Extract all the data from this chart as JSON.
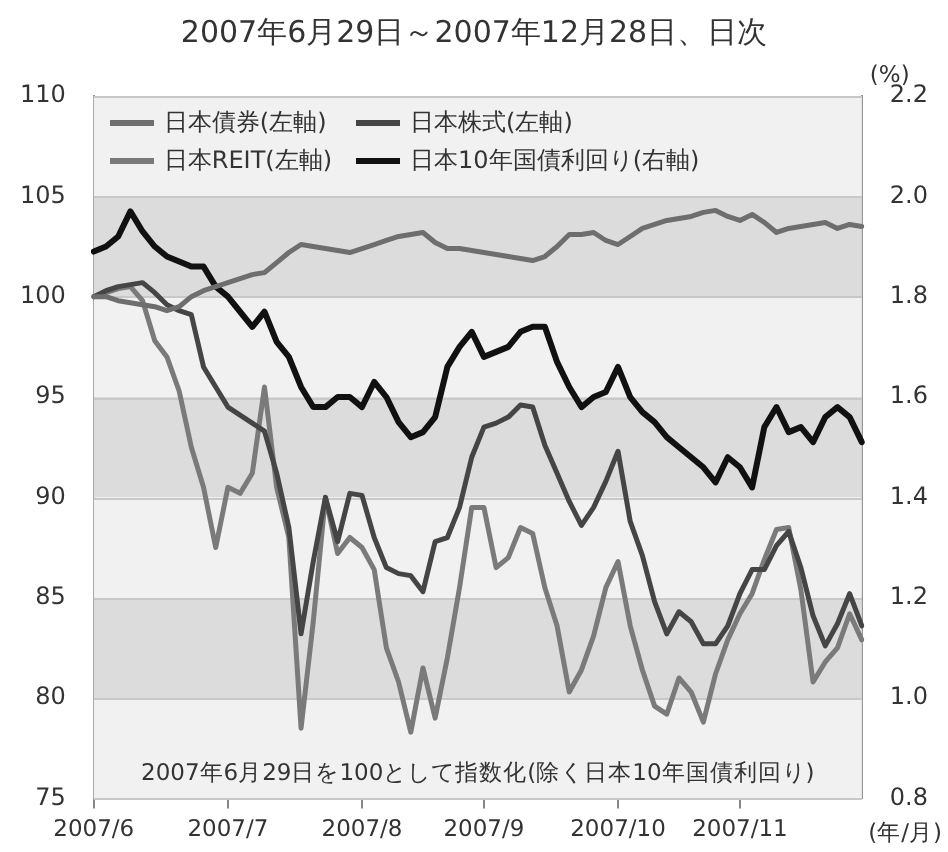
{
  "chart_data": {
    "type": "line",
    "title": "2007年6月29日～2007年12月28日、日次",
    "xlabel": "(年/月)",
    "y2label": "(%)",
    "categories": [
      "2007/6",
      null,
      null,
      null,
      null,
      null,
      null,
      null,
      null,
      null,
      null,
      "2007/7",
      null,
      null,
      null,
      null,
      null,
      null,
      null,
      null,
      null,
      null,
      "2007/8",
      null,
      null,
      null,
      null,
      null,
      null,
      null,
      null,
      null,
      "2007/9",
      null,
      null,
      null,
      null,
      null,
      null,
      null,
      null,
      null,
      null,
      "2007/10",
      null,
      null,
      null,
      null,
      null,
      null,
      null,
      null,
      null,
      "2007/11",
      null,
      null,
      null,
      null,
      null,
      null,
      null,
      null,
      null,
      null
    ],
    "series": [
      {
        "name": "日本債券(左軸)",
        "color": "#6e6e6e",
        "values": [
          100,
          100,
          99.8,
          99.7,
          99.6,
          99.5,
          99.3,
          99.5,
          100,
          100.3,
          100.5,
          100.7,
          100.9,
          101.1,
          101.2,
          101.7,
          102.2,
          102.6,
          102.5,
          102.4,
          102.3,
          102.2,
          102.4,
          102.6,
          102.8,
          103,
          103.1,
          103.2,
          102.7,
          102.4,
          102.4,
          102.3,
          102.2,
          102.1,
          102,
          101.9,
          101.8,
          102,
          102.5,
          103.1,
          103.1,
          103.2,
          102.8,
          102.6,
          103,
          103.4,
          103.6,
          103.8,
          103.9,
          104,
          104.2,
          104.3,
          104,
          103.8,
          104.1,
          103.7,
          103.2,
          103.4,
          103.5,
          103.6,
          103.7,
          103.4,
          103.6,
          103.5
        ]
      },
      {
        "name": "日本株式(左軸)",
        "color": "#454545",
        "values": [
          100,
          100.3,
          100.5,
          100.6,
          100.7,
          100.2,
          99.6,
          99.3,
          99.1,
          96.5,
          95.5,
          94.5,
          94.1,
          93.7,
          93.3,
          91.2,
          88.5,
          83.2,
          86.8,
          90,
          87.8,
          90.2,
          90.1,
          88,
          86.5,
          86.2,
          86.1,
          85.3,
          87.8,
          88,
          89.5,
          92,
          93.5,
          93.7,
          94,
          94.6,
          94.5,
          92.6,
          91.2,
          89.8,
          88.6,
          89.5,
          90.8,
          92.3,
          88.8,
          87.1,
          84.8,
          83.2,
          84.3,
          83.8,
          82.7,
          82.7,
          83.6,
          85.2,
          86.4,
          86.4,
          87.6,
          88.3,
          86.5,
          84.1,
          82.6,
          83.7,
          85.2,
          83.6
        ]
      },
      {
        "name": "日本REIT(左軸)",
        "color": "#7a7a7a",
        "values": [
          100,
          100.2,
          100.4,
          100.5,
          99.8,
          97.8,
          97,
          95.3,
          92.5,
          90.5,
          87.5,
          90.5,
          90.2,
          91.2,
          95.5,
          90.5,
          88,
          78.5,
          83.8,
          90,
          87.2,
          88,
          87.5,
          86.4,
          82.5,
          80.8,
          78.3,
          81.5,
          79,
          82,
          85.5,
          89.5,
          89.5,
          86.5,
          87,
          88.5,
          88.2,
          85.5,
          83.6,
          80.3,
          81.4,
          83.1,
          85.5,
          86.8,
          83.6,
          81.4,
          79.6,
          79.2,
          81,
          80.3,
          78.8,
          81.2,
          82.9,
          84.2,
          85.2,
          86.9,
          88.4,
          88.5,
          85.4,
          80.8,
          81.8,
          82.5,
          84.2,
          82.9
        ]
      },
      {
        "name": "日本10年国債利回り(右軸)",
        "color": "#111111",
        "axis": "y2",
        "values": [
          1.89,
          1.9,
          1.92,
          1.97,
          1.93,
          1.9,
          1.88,
          1.87,
          1.86,
          1.86,
          1.82,
          1.8,
          1.77,
          1.74,
          1.77,
          1.71,
          1.68,
          1.62,
          1.58,
          1.58,
          1.6,
          1.6,
          1.58,
          1.63,
          1.6,
          1.55,
          1.52,
          1.53,
          1.56,
          1.66,
          1.7,
          1.73,
          1.68,
          1.69,
          1.7,
          1.73,
          1.74,
          1.74,
          1.67,
          1.62,
          1.58,
          1.6,
          1.61,
          1.66,
          1.6,
          1.57,
          1.55,
          1.52,
          1.5,
          1.48,
          1.46,
          1.43,
          1.48,
          1.46,
          1.42,
          1.54,
          1.58,
          1.53,
          1.54,
          1.51,
          1.56,
          1.58,
          1.56,
          1.51
        ]
      }
    ],
    "ylim": [
      75,
      110
    ],
    "yticks": [
      75,
      80,
      85,
      90,
      95,
      100,
      105,
      110
    ],
    "y2lim": [
      0.8,
      2.2
    ],
    "y2ticks": [
      0.8,
      {
        "value": 1,
        "label": "1.0"
      },
      1.2,
      1.4,
      1.6,
      1.8,
      {
        "value": 2,
        "label": "2.0"
      },
      2.2
    ],
    "grid": "y",
    "legend": "top left",
    "annotations": [
      "2007年6月29日を100として指数化(除く日本10年国債利回り)"
    ]
  }
}
